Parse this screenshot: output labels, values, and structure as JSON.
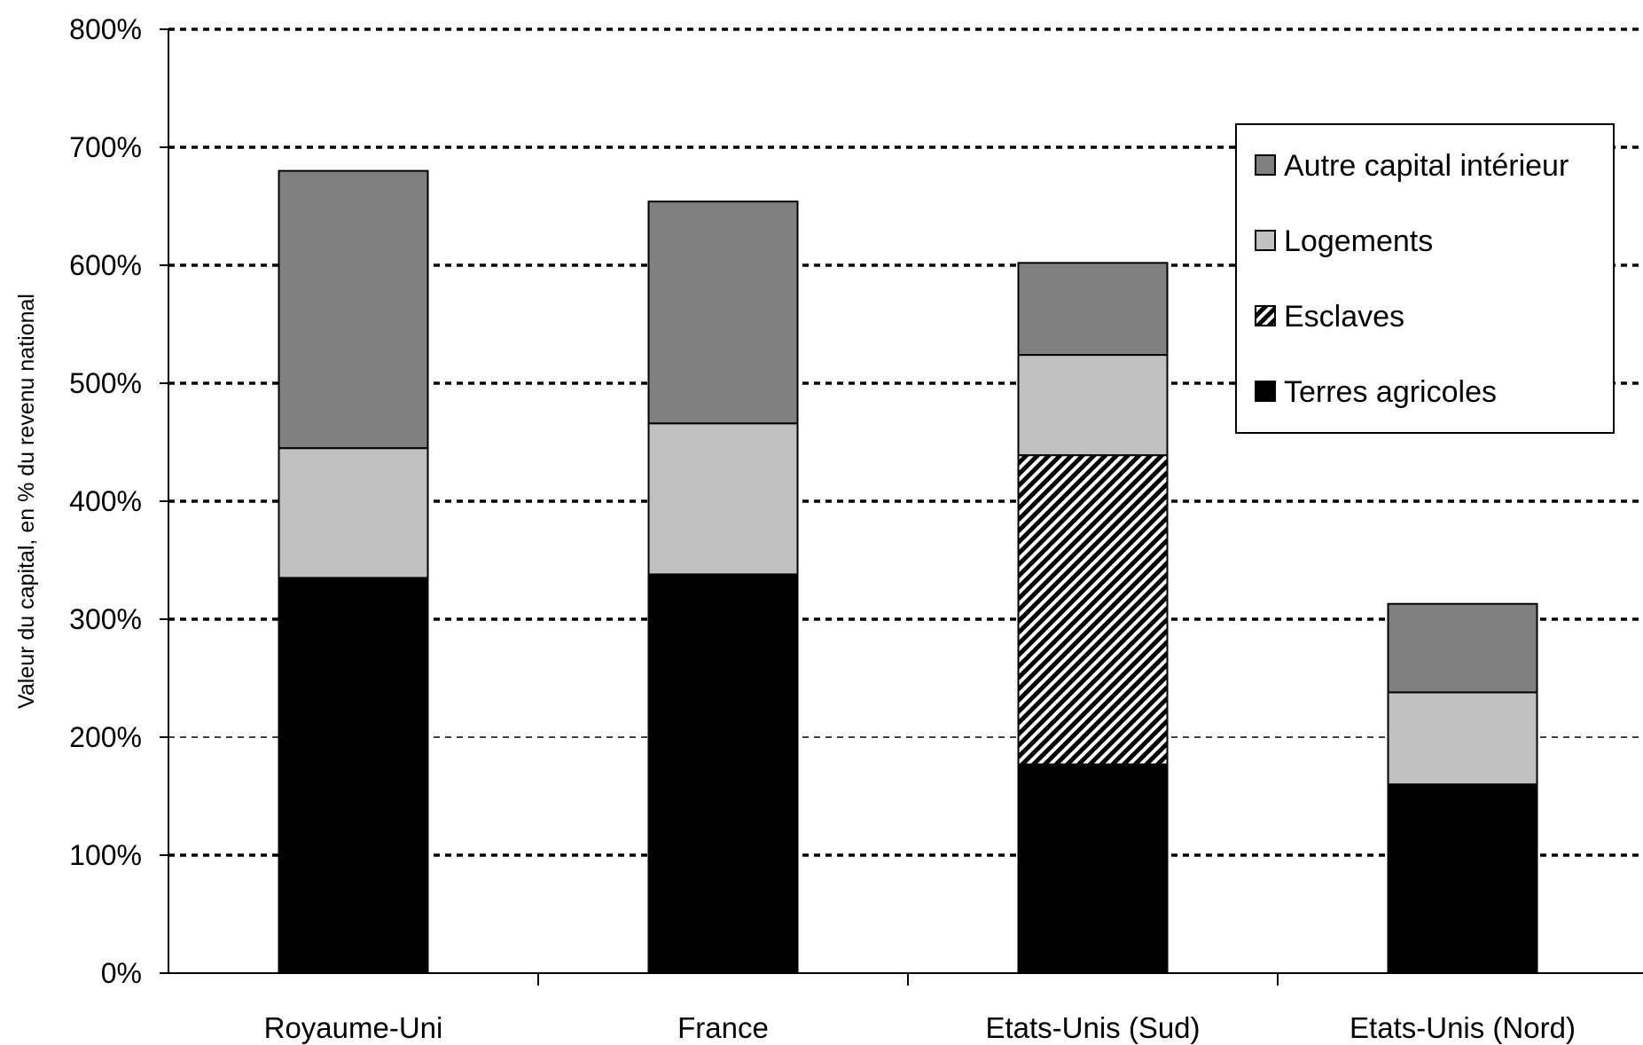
{
  "chart_data": {
    "type": "bar",
    "stacked": true,
    "title": "",
    "xlabel": "",
    "ylabel": "Valeur du capital, en % du revenu national",
    "ylim": [
      0,
      800
    ],
    "yticks": [
      "0%",
      "100%",
      "200%",
      "300%",
      "400%",
      "500%",
      "600%",
      "700%",
      "800%"
    ],
    "grid": true,
    "legend_position": "top-right",
    "categories": [
      "Royaume-Uni",
      "France",
      "Etats-Unis (Sud)",
      "Etats-Unis (Nord)"
    ],
    "series": [
      {
        "name": "Terres agricoles",
        "values": [
          335,
          338,
          177,
          160
        ],
        "color": "#000000",
        "pattern": "solid"
      },
      {
        "name": "Esclaves",
        "values": [
          0,
          0,
          262,
          0
        ],
        "color": "#000000",
        "pattern": "hatch"
      },
      {
        "name": "Logements",
        "values": [
          110,
          128,
          85,
          78
        ],
        "color": "#c0c0c0",
        "pattern": "solid"
      },
      {
        "name": "Autre capital intérieur",
        "values": [
          235,
          188,
          78,
          75
        ],
        "color": "#808080",
        "pattern": "solid"
      }
    ],
    "legend_order": [
      "Autre capital intérieur",
      "Logements",
      "Esclaves",
      "Terres agricoles"
    ]
  }
}
